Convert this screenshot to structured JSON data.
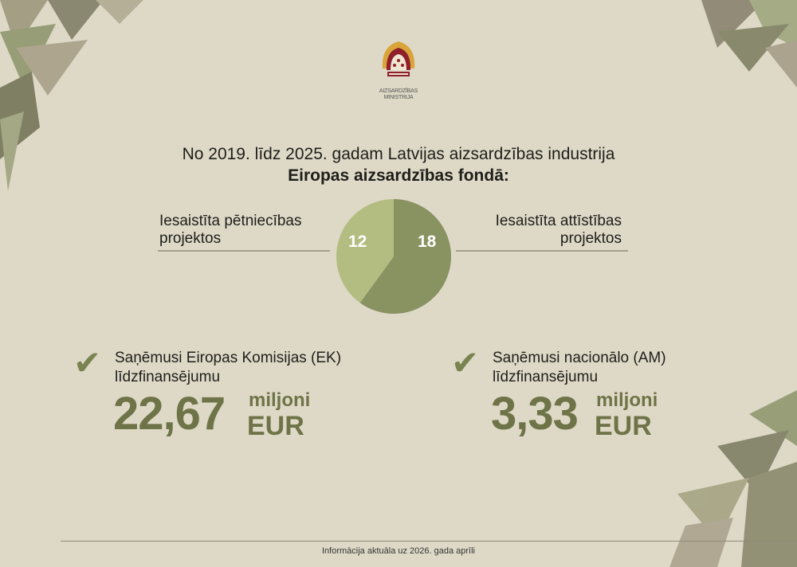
{
  "logo": {
    "text": "AIZSARDZĪBAS MINISTRIJA",
    "colors": {
      "red": "#8e1f2b",
      "gold": "#d9a53a"
    }
  },
  "title": {
    "line1": "No 2019. līdz 2025. gadam Latvijas aizsardzības industrija",
    "line2": "Eiropas aizsardzības fondā:"
  },
  "chart_data": {
    "type": "pie",
    "categories": [
      "Iesaistīta pētniecības projektos",
      "Iesaistīta attīstības projektos"
    ],
    "values": [
      12,
      18
    ],
    "colors": [
      "#b3bd82",
      "#899261"
    ],
    "labels": {
      "left": "Iesaistīta pētniecības projektos",
      "right": "Iesaistīta attīstības projektos"
    },
    "value_labels": [
      "12",
      "18"
    ]
  },
  "left_label": {
    "line1": "Iesaistīta pētniecības",
    "line2": "projektos"
  },
  "right_label": {
    "line1": "Iesaistīta attīstības",
    "line2": "projektos"
  },
  "funding": [
    {
      "icon": "checkmark-icon",
      "line1": "Saņēmusi Eiropas Komisijas (EK)",
      "line2": "līdzfinansējumu",
      "amount": "22,67",
      "unit1": "miljoni",
      "unit2": "EUR"
    },
    {
      "icon": "checkmark-icon",
      "line1": "Saņēmusi nacionālo (AM)",
      "line2": "līdzfinansējumu",
      "amount": "3,33",
      "unit1": "miljoni",
      "unit2": "EUR"
    }
  ],
  "footer": "Informācija aktuāla uz 2026. gada aprīli",
  "accent": "#6e7447"
}
